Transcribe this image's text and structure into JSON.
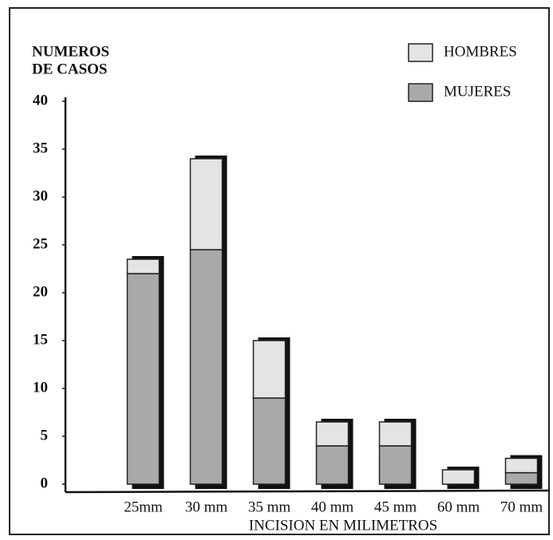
{
  "chart_data": {
    "type": "stacked_bar",
    "y_label": [
      "NUMEROS",
      "DE CASOS"
    ],
    "x_label": "INCISION EN MILIMETROS",
    "categories": [
      "25mm",
      "30 mm",
      "35 mm",
      "40 mm",
      "45 mm",
      "60 mm",
      "70 mm"
    ],
    "series": [
      {
        "name": "MUJERES",
        "color": "#a9a9a9",
        "values": [
          22,
          24.5,
          9,
          4,
          4,
          0,
          1.2
        ]
      },
      {
        "name": "HOMBRES",
        "color": "#e4e4e4",
        "values": [
          1.5,
          9.5,
          6,
          2.5,
          2.5,
          1.5,
          1.5
        ]
      }
    ],
    "ylim": [
      0,
      40
    ],
    "yticks": [
      0,
      5,
      10,
      15,
      20,
      25,
      30,
      35,
      40
    ],
    "legend": "upper right"
  }
}
